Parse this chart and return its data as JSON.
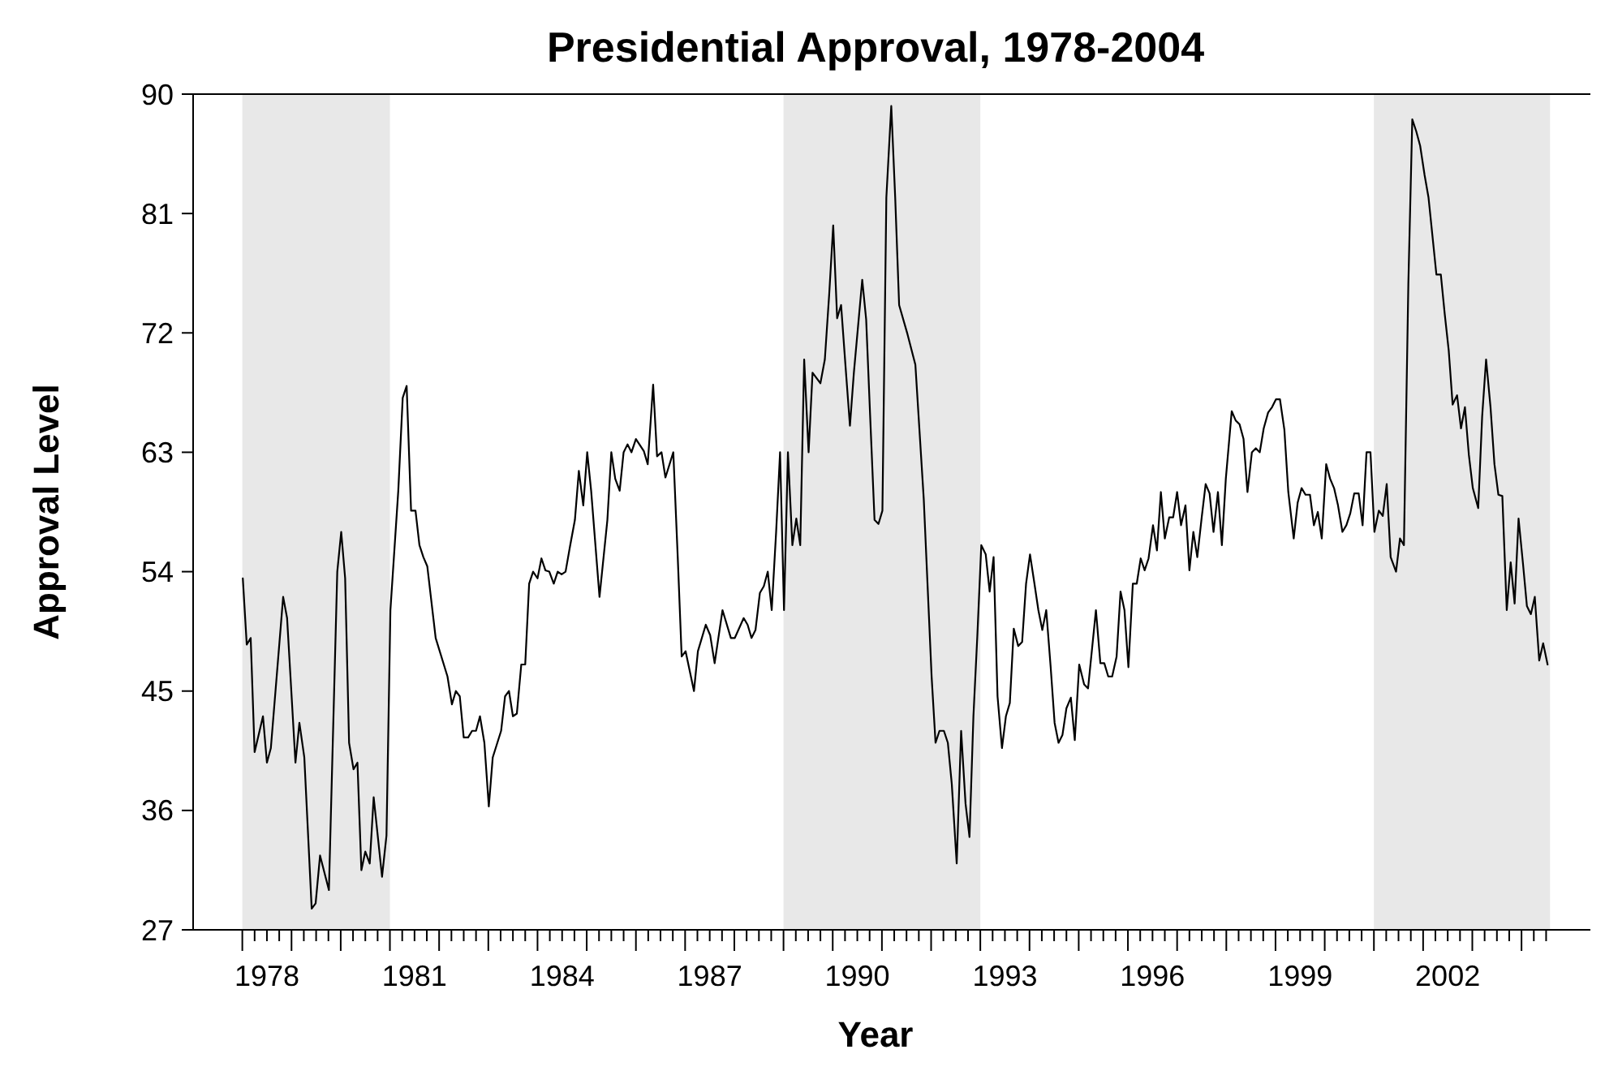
{
  "chart_data": {
    "type": "line",
    "title": "Presidential Approval, 1978-2004",
    "xlabel": "Year",
    "ylabel": "Approval Level",
    "xlim": [
      1977,
      2005.4
    ],
    "ylim": [
      27,
      90
    ],
    "yticks": [
      27,
      36,
      45,
      54,
      63,
      72,
      81,
      90
    ],
    "xticks": [
      {
        "value": 1978,
        "label": null
      },
      {
        "value": 1978.25,
        "label": null
      },
      {
        "value": 1978.5,
        "label": "1978"
      },
      {
        "value": 1978.75,
        "label": null
      },
      {
        "value": 1979,
        "label": null
      },
      {
        "value": 1979.25,
        "label": null
      },
      {
        "value": 1979.5,
        "label": null
      },
      {
        "value": 1979.75,
        "label": null
      },
      {
        "value": 1980,
        "label": null
      },
      {
        "value": 1980.25,
        "label": null
      },
      {
        "value": 1980.5,
        "label": null
      },
      {
        "value": 1980.75,
        "label": null
      },
      {
        "value": 1981,
        "label": null
      },
      {
        "value": 1981.25,
        "label": null
      },
      {
        "value": 1981.5,
        "label": "1981"
      },
      {
        "value": 1981.75,
        "label": null
      },
      {
        "value": 1982,
        "label": null
      },
      {
        "value": 1982.25,
        "label": null
      },
      {
        "value": 1982.5,
        "label": null
      },
      {
        "value": 1982.75,
        "label": null
      },
      {
        "value": 1983,
        "label": null
      },
      {
        "value": 1983.25,
        "label": null
      },
      {
        "value": 1983.5,
        "label": null
      },
      {
        "value": 1983.75,
        "label": null
      },
      {
        "value": 1984,
        "label": null
      },
      {
        "value": 1984.25,
        "label": null
      },
      {
        "value": 1984.5,
        "label": "1984"
      },
      {
        "value": 1984.75,
        "label": null
      },
      {
        "value": 1985,
        "label": null
      },
      {
        "value": 1985.25,
        "label": null
      },
      {
        "value": 1985.5,
        "label": null
      },
      {
        "value": 1985.75,
        "label": null
      },
      {
        "value": 1986,
        "label": null
      },
      {
        "value": 1986.25,
        "label": null
      },
      {
        "value": 1986.5,
        "label": null
      },
      {
        "value": 1986.75,
        "label": null
      },
      {
        "value": 1987,
        "label": null
      },
      {
        "value": 1987.25,
        "label": null
      },
      {
        "value": 1987.5,
        "label": "1987"
      },
      {
        "value": 1987.75,
        "label": null
      },
      {
        "value": 1988,
        "label": null
      },
      {
        "value": 1988.25,
        "label": null
      },
      {
        "value": 1988.5,
        "label": null
      },
      {
        "value": 1988.75,
        "label": null
      },
      {
        "value": 1989,
        "label": null
      },
      {
        "value": 1989.25,
        "label": null
      },
      {
        "value": 1989.5,
        "label": null
      },
      {
        "value": 1989.75,
        "label": null
      },
      {
        "value": 1990,
        "label": null
      },
      {
        "value": 1990.25,
        "label": null
      },
      {
        "value": 1990.5,
        "label": "1990"
      },
      {
        "value": 1990.75,
        "label": null
      },
      {
        "value": 1991,
        "label": null
      },
      {
        "value": 1991.25,
        "label": null
      },
      {
        "value": 1991.5,
        "label": null
      },
      {
        "value": 1991.75,
        "label": null
      },
      {
        "value": 1992,
        "label": null
      },
      {
        "value": 1992.25,
        "label": null
      },
      {
        "value": 1992.5,
        "label": null
      },
      {
        "value": 1992.75,
        "label": null
      },
      {
        "value": 1993,
        "label": null
      },
      {
        "value": 1993.25,
        "label": null
      },
      {
        "value": 1993.5,
        "label": "1993"
      },
      {
        "value": 1993.75,
        "label": null
      },
      {
        "value": 1994,
        "label": null
      },
      {
        "value": 1994.25,
        "label": null
      },
      {
        "value": 1994.5,
        "label": null
      },
      {
        "value": 1994.75,
        "label": null
      },
      {
        "value": 1995,
        "label": null
      },
      {
        "value": 1995.25,
        "label": null
      },
      {
        "value": 1995.5,
        "label": null
      },
      {
        "value": 1995.75,
        "label": null
      },
      {
        "value": 1996,
        "label": null
      },
      {
        "value": 1996.25,
        "label": null
      },
      {
        "value": 1996.5,
        "label": "1996"
      },
      {
        "value": 1996.75,
        "label": null
      },
      {
        "value": 1997,
        "label": null
      },
      {
        "value": 1997.25,
        "label": null
      },
      {
        "value": 1997.5,
        "label": null
      },
      {
        "value": 1997.75,
        "label": null
      },
      {
        "value": 1998,
        "label": null
      },
      {
        "value": 1998.25,
        "label": null
      },
      {
        "value": 1998.5,
        "label": null
      },
      {
        "value": 1998.75,
        "label": null
      },
      {
        "value": 1999,
        "label": null
      },
      {
        "value": 1999.25,
        "label": null
      },
      {
        "value": 1999.5,
        "label": "1999"
      },
      {
        "value": 1999.75,
        "label": null
      },
      {
        "value": 2000,
        "label": null
      },
      {
        "value": 2000.25,
        "label": null
      },
      {
        "value": 2000.5,
        "label": null
      },
      {
        "value": 2000.75,
        "label": null
      },
      {
        "value": 2001,
        "label": null
      },
      {
        "value": 2001.25,
        "label": null
      },
      {
        "value": 2001.5,
        "label": null
      },
      {
        "value": 2001.75,
        "label": null
      },
      {
        "value": 2002,
        "label": null
      },
      {
        "value": 2002.25,
        "label": null
      },
      {
        "value": 2002.5,
        "label": "2002"
      },
      {
        "value": 2002.75,
        "label": null
      },
      {
        "value": 2003,
        "label": null
      },
      {
        "value": 2003.25,
        "label": null
      },
      {
        "value": 2003.5,
        "label": null
      },
      {
        "value": 2003.75,
        "label": null
      },
      {
        "value": 2004,
        "label": null
      },
      {
        "value": 2004.25,
        "label": null
      },
      {
        "value": 2004.5,
        "label": null
      }
    ],
    "bands": [
      {
        "axis": "x",
        "from": 1978,
        "to": 1981,
        "color": "#e8e8e8"
      },
      {
        "axis": "x",
        "from": 1989,
        "to": 1993,
        "color": "#e8e8e8"
      },
      {
        "axis": "x",
        "from": 2001,
        "to": 2004.58,
        "color": "#e8e8e8"
      }
    ],
    "grid": false,
    "marker": "none",
    "line_style": "solid",
    "series": [
      {
        "color": "#000000",
        "x": [
          1978.01,
          1978.09,
          1978.17,
          1978.25,
          1978.42,
          1978.5,
          1978.58,
          1978.83,
          1978.91,
          1979.08,
          1979.16,
          1979.26,
          1979.41,
          1979.49,
          1979.58,
          1979.76,
          1979.93,
          1980.01,
          1980.09,
          1980.17,
          1980.26,
          1980.34,
          1980.42,
          1980.5,
          1980.59,
          1980.67,
          1980.84,
          1980.93,
          1981.01,
          1981.17,
          1981.26,
          1981.34,
          1981.43,
          1981.52,
          1981.6,
          1981.68,
          1981.76,
          1981.93,
          1982.17,
          1982.26,
          1982.34,
          1982.42,
          1982.5,
          1982.59,
          1982.67,
          1982.75,
          1982.83,
          1982.92,
          1983.01,
          1983.09,
          1983.26,
          1983.34,
          1983.42,
          1983.5,
          1983.58,
          1983.67,
          1983.75,
          1983.83,
          1983.91,
          1984,
          1984.08,
          1984.16,
          1984.24,
          1984.33,
          1984.41,
          1984.49,
          1984.57,
          1984.66,
          1984.76,
          1984.84,
          1984.93,
          1985.01,
          1985.09,
          1985.26,
          1985.42,
          1985.5,
          1985.58,
          1985.67,
          1985.75,
          1985.83,
          1985.91,
          1986,
          1986.16,
          1986.24,
          1986.35,
          1986.43,
          1986.52,
          1986.6,
          1986.76,
          1986.85,
          1986.93,
          1987.01,
          1987.18,
          1987.26,
          1987.42,
          1987.51,
          1987.6,
          1987.76,
          1987.93,
          1988.01,
          1988.19,
          1988.27,
          1988.35,
          1988.43,
          1988.52,
          1988.6,
          1988.68,
          1988.76,
          1988.85,
          1988.93,
          1989.01,
          1989.09,
          1989.18,
          1989.26,
          1989.34,
          1989.42,
          1989.51,
          1989.59,
          1989.75,
          1989.84,
          1989.93,
          1990.01,
          1990.09,
          1990.17,
          1990.26,
          1990.35,
          1990.43,
          1990.6,
          1990.68,
          1990.76,
          1990.85,
          1990.93,
          1991.01,
          1991.09,
          1991.19,
          1991.27,
          1991.35,
          1991.52,
          1991.68,
          1991.85,
          1992.01,
          1992.09,
          1992.17,
          1992.26,
          1992.34,
          1992.42,
          1992.52,
          1992.61,
          1992.7,
          1992.78,
          1992.86,
          1992.94,
          1993.02,
          1993.11,
          1993.19,
          1993.27,
          1993.35,
          1993.44,
          1993.52,
          1993.6,
          1993.68,
          1993.77,
          1993.85,
          1993.93,
          1994.01,
          1994.1,
          1994.18,
          1994.26,
          1994.34,
          1994.43,
          1994.51,
          1994.59,
          1994.67,
          1994.75,
          1994.84,
          1994.92,
          1995.01,
          1995.11,
          1995.19,
          1995.35,
          1995.44,
          1995.52,
          1995.6,
          1995.68,
          1995.77,
          1995.85,
          1995.93,
          1996.01,
          1996.1,
          1996.18,
          1996.26,
          1996.34,
          1996.42,
          1996.51,
          1996.59,
          1996.67,
          1996.75,
          1996.84,
          1996.92,
          1997,
          1997.08,
          1997.17,
          1997.25,
          1997.33,
          1997.41,
          1997.5,
          1997.58,
          1997.66,
          1997.74,
          1997.83,
          1997.91,
          1997.99,
          1998.11,
          1998.19,
          1998.27,
          1998.35,
          1998.43,
          1998.52,
          1998.6,
          1998.68,
          1998.76,
          1998.85,
          1998.93,
          1999.01,
          1999.09,
          1999.18,
          1999.26,
          1999.37,
          1999.45,
          1999.53,
          1999.61,
          1999.7,
          1999.78,
          1999.86,
          1999.94,
          2000.03,
          2000.11,
          2000.19,
          2000.27,
          2000.36,
          2000.44,
          2000.52,
          2000.6,
          2000.69,
          2000.77,
          2000.85,
          2000.93,
          2001.01,
          2001.1,
          2001.18,
          2001.26,
          2001.34,
          2001.45,
          2001.53,
          2001.61,
          2001.7,
          2001.78,
          2001.86,
          2001.94,
          2002.03,
          2002.11,
          2002.19,
          2002.27,
          2002.36,
          2002.44,
          2002.52,
          2002.6,
          2002.69,
          2002.77,
          2002.85,
          2002.93,
          2003.01,
          2003.12,
          2003.2,
          2003.28,
          2003.37,
          2003.45,
          2003.53,
          2003.61,
          2003.7,
          2003.78,
          2003.86,
          2003.94,
          2004.03,
          2004.11,
          2004.19,
          2004.27,
          2004.36,
          2004.44,
          2004.53
        ],
        "values": [
          53.5,
          48.5,
          49.0,
          40.4,
          43.1,
          39.6,
          40.7,
          52.1,
          50.5,
          39.6,
          42.6,
          40.0,
          28.6,
          29.0,
          32.6,
          30.0,
          54.0,
          57.0,
          53.5,
          41.1,
          39.1,
          39.6,
          31.5,
          32.9,
          32.0,
          37.0,
          31.0,
          34.1,
          51.1,
          60.1,
          67.1,
          68.0,
          58.6,
          58.6,
          56.0,
          55.1,
          54.4,
          49.0,
          46.1,
          44.0,
          45.0,
          44.6,
          41.5,
          41.5,
          42.0,
          42.0,
          43.1,
          41.1,
          36.3,
          40.0,
          42.0,
          44.6,
          45.0,
          43.1,
          43.3,
          47.0,
          47.0,
          53.1,
          54.0,
          53.5,
          55.0,
          54.1,
          54.0,
          53.1,
          54.0,
          53.8,
          54.0,
          55.9,
          57.9,
          61.6,
          59.0,
          63.0,
          60.1,
          52.1,
          57.9,
          63.0,
          61.0,
          60.1,
          63.0,
          63.6,
          63.0,
          64.0,
          63.1,
          62.1,
          68.1,
          62.7,
          63.0,
          61.1,
          63.0,
          55.1,
          47.6,
          48.0,
          45.0,
          48.0,
          50.0,
          49.2,
          47.1,
          51.1,
          49.0,
          49.0,
          50.5,
          50.0,
          49.0,
          49.6,
          52.4,
          52.9,
          54.0,
          51.1,
          57.0,
          63.0,
          51.1,
          63.0,
          56.0,
          58.0,
          56.0,
          70.0,
          63.0,
          69.0,
          68.2,
          70.0,
          75.0,
          80.1,
          73.1,
          74.1,
          69.5,
          65.0,
          69.0,
          76.0,
          73.0,
          65.8,
          57.9,
          57.6,
          58.6,
          82.2,
          89.1,
          82.2,
          74.1,
          71.9,
          69.6,
          59.5,
          46.1,
          41.1,
          42.0,
          42.0,
          41.1,
          38.0,
          32.0,
          42.0,
          36.5,
          34.0,
          43.1,
          49.2,
          56.0,
          55.3,
          52.5,
          55.1,
          44.6,
          40.7,
          43.1,
          44.1,
          49.7,
          48.4,
          48.7,
          53.1,
          55.3,
          53.1,
          51.1,
          49.6,
          51.1,
          46.8,
          42.6,
          41.1,
          41.7,
          43.7,
          44.5,
          41.3,
          47.0,
          45.5,
          45.2,
          51.1,
          47.1,
          47.1,
          46.1,
          46.1,
          47.6,
          52.5,
          51.1,
          46.8,
          53.1,
          53.1,
          55.0,
          54.1,
          55.0,
          57.5,
          55.6,
          60.0,
          56.5,
          58.1,
          58.1,
          60.0,
          57.5,
          59.0,
          54.1,
          57.0,
          55.1,
          58.1,
          60.6,
          59.9,
          57.0,
          60.0,
          56.0,
          61.0,
          66.1,
          65.4,
          65.1,
          64.0,
          60.0,
          63.0,
          63.3,
          63.0,
          64.8,
          66.0,
          66.4,
          67.0,
          67.0,
          64.7,
          60.0,
          56.5,
          59.2,
          60.3,
          59.8,
          59.8,
          57.5,
          58.5,
          56.5,
          62.1,
          61.0,
          60.3,
          59.0,
          57.0,
          57.5,
          58.4,
          59.9,
          59.9,
          57.5,
          63.0,
          63.0,
          57.0,
          58.6,
          58.2,
          60.6,
          55.1,
          54.0,
          56.5,
          56.0,
          75.7,
          88.1,
          87.2,
          86.1,
          83.9,
          82.2,
          79.3,
          76.4,
          76.4,
          73.4,
          70.7,
          66.6,
          67.3,
          64.8,
          66.4,
          62.8,
          60.3,
          58.8,
          65.7,
          70.0,
          66.4,
          62.1,
          59.8,
          59.7,
          51.1,
          54.7,
          51.6,
          58.0,
          54.6,
          51.4,
          50.8,
          52.1,
          47.3,
          48.6,
          47.0
        ]
      }
    ]
  }
}
